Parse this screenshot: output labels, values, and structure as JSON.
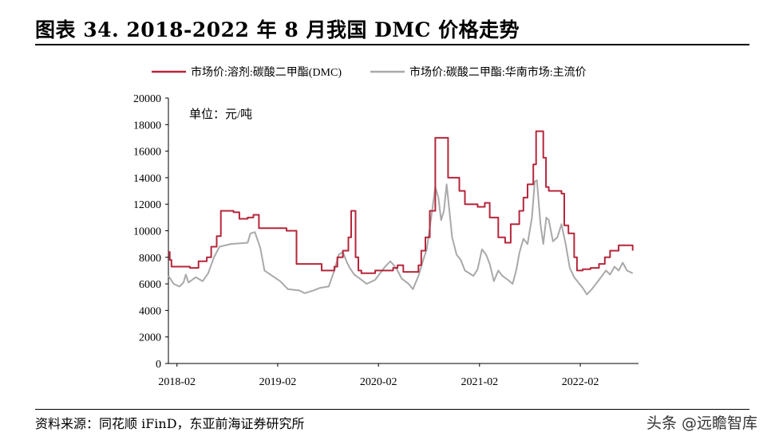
{
  "figure": {
    "title": "图表 34. 2018-2022 年 8 月我国 DMC 价格走势",
    "source": "资料来源：同花顺 iFinD，东亚前海证券研究所",
    "watermark": "头条 @远瞻智库"
  },
  "chart_data": {
    "type": "line",
    "unit_label": "单位：元/吨",
    "xlabel": "",
    "ylabel": "",
    "ylim": [
      0,
      20000
    ],
    "yticks": [
      0,
      2000,
      4000,
      6000,
      8000,
      10000,
      12000,
      14000,
      16000,
      18000,
      20000
    ],
    "xlim": [
      "2018-01-01",
      "2022-08-31"
    ],
    "xticks": [
      "2018-02",
      "2019-02",
      "2020-02",
      "2021-02",
      "2022-02"
    ],
    "grid": false,
    "legend_position": "top",
    "series": [
      {
        "name": "市场价:溶剂:碳酸二甲酯(DMC)",
        "color": "#b5263b",
        "step": true,
        "points": [
          [
            "2018-01-01",
            8400
          ],
          [
            "2018-01-06",
            7800
          ],
          [
            "2018-01-12",
            7300
          ],
          [
            "2018-03-20",
            7200
          ],
          [
            "2018-04-20",
            7700
          ],
          [
            "2018-05-20",
            8000
          ],
          [
            "2018-06-05",
            8800
          ],
          [
            "2018-06-25",
            9600
          ],
          [
            "2018-07-10",
            11500
          ],
          [
            "2018-08-25",
            11400
          ],
          [
            "2018-09-15",
            10900
          ],
          [
            "2018-10-15",
            11000
          ],
          [
            "2018-11-05",
            11200
          ],
          [
            "2018-11-25",
            10200
          ],
          [
            "2019-03-05",
            10000
          ],
          [
            "2019-04-10",
            7500
          ],
          [
            "2019-07-10",
            7000
          ],
          [
            "2019-08-25",
            7300
          ],
          [
            "2019-09-05",
            8000
          ],
          [
            "2019-09-25",
            8500
          ],
          [
            "2019-10-15",
            9500
          ],
          [
            "2019-10-25",
            11500
          ],
          [
            "2019-11-10",
            8000
          ],
          [
            "2019-11-20",
            7000
          ],
          [
            "2019-12-01",
            6800
          ],
          [
            "2020-01-20",
            7000
          ],
          [
            "2020-03-25",
            7200
          ],
          [
            "2020-04-10",
            7400
          ],
          [
            "2020-05-01",
            6900
          ],
          [
            "2020-06-25",
            7400
          ],
          [
            "2020-07-05",
            8500
          ],
          [
            "2020-07-20",
            9500
          ],
          [
            "2020-08-05",
            11500
          ],
          [
            "2020-08-25",
            17000
          ],
          [
            "2020-10-10",
            14000
          ],
          [
            "2020-11-20",
            13000
          ],
          [
            "2020-12-10",
            12000
          ],
          [
            "2021-01-25",
            11800
          ],
          [
            "2021-02-20",
            12100
          ],
          [
            "2021-03-10",
            11000
          ],
          [
            "2021-04-10",
            9500
          ],
          [
            "2021-05-05",
            9100
          ],
          [
            "2021-05-25",
            10500
          ],
          [
            "2021-06-25",
            11500
          ],
          [
            "2021-07-10",
            12500
          ],
          [
            "2021-07-25",
            13500
          ],
          [
            "2021-08-15",
            15000
          ],
          [
            "2021-08-25",
            17500
          ],
          [
            "2021-09-20",
            15500
          ],
          [
            "2021-09-30",
            13300
          ],
          [
            "2021-10-10",
            13000
          ],
          [
            "2021-11-25",
            12800
          ],
          [
            "2021-12-05",
            10400
          ],
          [
            "2021-12-20",
            9800
          ],
          [
            "2022-01-10",
            8000
          ],
          [
            "2022-01-20",
            7000
          ],
          [
            "2022-02-10",
            7100
          ],
          [
            "2022-03-10",
            7200
          ],
          [
            "2022-04-10",
            7500
          ],
          [
            "2022-05-01",
            8000
          ],
          [
            "2022-05-20",
            8500
          ],
          [
            "2022-06-20",
            8900
          ],
          [
            "2022-08-10",
            8500
          ]
        ]
      },
      {
        "name": "市场价:碳酸二甲酯:华南市场:主流价",
        "color": "#a9a9a9",
        "step": false,
        "points": [
          [
            "2018-01-01",
            6600
          ],
          [
            "2018-01-20",
            6000
          ],
          [
            "2018-02-10",
            5800
          ],
          [
            "2018-02-25",
            6100
          ],
          [
            "2018-03-05",
            6700
          ],
          [
            "2018-03-15",
            6100
          ],
          [
            "2018-04-10",
            6500
          ],
          [
            "2018-05-05",
            6200
          ],
          [
            "2018-05-25",
            6800
          ],
          [
            "2018-06-15",
            8000
          ],
          [
            "2018-07-05",
            8800
          ],
          [
            "2018-08-15",
            9000
          ],
          [
            "2018-10-15",
            9100
          ],
          [
            "2018-10-25",
            9800
          ],
          [
            "2018-11-10",
            9900
          ],
          [
            "2018-11-30",
            8700
          ],
          [
            "2018-12-15",
            7000
          ],
          [
            "2019-01-20",
            6500
          ],
          [
            "2019-02-10",
            6200
          ],
          [
            "2019-03-10",
            5600
          ],
          [
            "2019-04-20",
            5500
          ],
          [
            "2019-05-10",
            5300
          ],
          [
            "2019-06-10",
            5500
          ],
          [
            "2019-07-05",
            5700
          ],
          [
            "2019-08-05",
            5800
          ],
          [
            "2019-08-25",
            7000
          ],
          [
            "2019-09-10",
            8200
          ],
          [
            "2019-09-25",
            8400
          ],
          [
            "2019-10-10",
            7600
          ],
          [
            "2019-10-20",
            7200
          ],
          [
            "2019-11-05",
            6700
          ],
          [
            "2019-11-25",
            6400
          ],
          [
            "2019-12-20",
            6000
          ],
          [
            "2020-01-20",
            6300
          ],
          [
            "2020-02-25",
            7300
          ],
          [
            "2020-03-15",
            7700
          ],
          [
            "2020-04-05",
            7200
          ],
          [
            "2020-04-25",
            6400
          ],
          [
            "2020-05-20",
            6000
          ],
          [
            "2020-06-05",
            5600
          ],
          [
            "2020-06-25",
            6600
          ],
          [
            "2020-07-15",
            8000
          ],
          [
            "2020-07-25",
            8600
          ],
          [
            "2020-08-10",
            11000
          ],
          [
            "2020-08-25",
            13300
          ],
          [
            "2020-09-05",
            12500
          ],
          [
            "2020-09-15",
            10800
          ],
          [
            "2020-09-25",
            11500
          ],
          [
            "2020-10-05",
            13500
          ],
          [
            "2020-10-15",
            11500
          ],
          [
            "2020-10-25",
            9500
          ],
          [
            "2020-11-10",
            8200
          ],
          [
            "2020-11-25",
            7800
          ],
          [
            "2020-12-10",
            7000
          ],
          [
            "2021-01-10",
            6600
          ],
          [
            "2021-01-25",
            7100
          ],
          [
            "2021-02-10",
            8600
          ],
          [
            "2021-02-25",
            8200
          ],
          [
            "2021-03-10",
            7500
          ],
          [
            "2021-03-25",
            6200
          ],
          [
            "2021-04-10",
            7000
          ],
          [
            "2021-04-25",
            6600
          ],
          [
            "2021-05-15",
            6300
          ],
          [
            "2021-06-01",
            6000
          ],
          [
            "2021-06-15",
            7100
          ],
          [
            "2021-06-25",
            8300
          ],
          [
            "2021-07-10",
            9400
          ],
          [
            "2021-07-25",
            9000
          ],
          [
            "2021-08-10",
            11000
          ],
          [
            "2021-08-20",
            13700
          ],
          [
            "2021-08-28",
            13800
          ],
          [
            "2021-09-10",
            10500
          ],
          [
            "2021-09-20",
            9000
          ],
          [
            "2021-10-01",
            11000
          ],
          [
            "2021-10-10",
            10800
          ],
          [
            "2021-10-25",
            9200
          ],
          [
            "2021-11-10",
            9500
          ],
          [
            "2021-11-25",
            10500
          ],
          [
            "2021-12-10",
            9000
          ],
          [
            "2021-12-25",
            7200
          ],
          [
            "2022-01-10",
            6500
          ],
          [
            "2022-01-25",
            6100
          ],
          [
            "2022-02-10",
            5700
          ],
          [
            "2022-02-25",
            5200
          ],
          [
            "2022-03-15",
            5600
          ],
          [
            "2022-04-10",
            6300
          ],
          [
            "2022-05-05",
            7000
          ],
          [
            "2022-05-20",
            6700
          ],
          [
            "2022-06-05",
            7300
          ],
          [
            "2022-06-20",
            7000
          ],
          [
            "2022-07-05",
            7600
          ],
          [
            "2022-07-20",
            7000
          ],
          [
            "2022-08-10",
            6800
          ]
        ]
      }
    ]
  }
}
